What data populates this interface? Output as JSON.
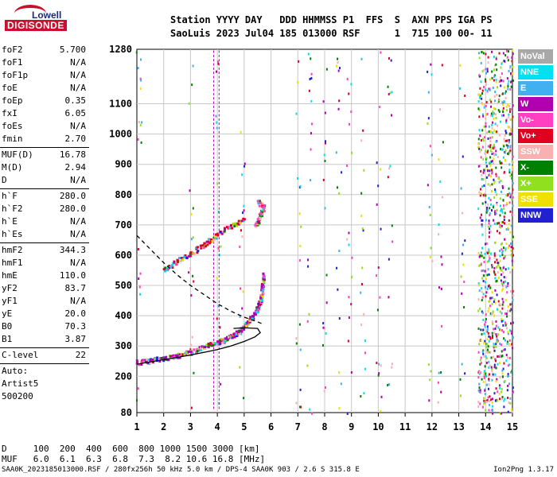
{
  "header": {
    "logo_top": "Lowell",
    "logo_bottom": "DIGISONDE",
    "row1": "Station YYYY DAY   DDD HHMMSS P1  FFS  S  AXN PPS IGA PS",
    "row2": "SaoLuis 2023 Jul04 185 013000 RSF      1  715 100 00- 11"
  },
  "params": {
    "group1": [
      {
        "label": "foF2",
        "value": "5.700"
      },
      {
        "label": "foF1",
        "value": "N/A"
      },
      {
        "label": "foF1p",
        "value": "N/A"
      },
      {
        "label": "foE",
        "value": "N/A"
      },
      {
        "label": "foEp",
        "value": "0.35"
      },
      {
        "label": "fxI",
        "value": "6.05"
      },
      {
        "label": "foEs",
        "value": "N/A"
      },
      {
        "label": "fmin",
        "value": "2.70"
      }
    ],
    "group2": [
      {
        "label": "MUF(D)",
        "value": "16.78"
      },
      {
        "label": "M(D)",
        "value": "2.94"
      },
      {
        "label": "D",
        "value": "N/A"
      }
    ],
    "group3": [
      {
        "label": "h`F",
        "value": "280.0"
      },
      {
        "label": "h`F2",
        "value": "280.0"
      },
      {
        "label": "h`E",
        "value": "N/A"
      },
      {
        "label": "h`Es",
        "value": "N/A"
      }
    ],
    "group4": [
      {
        "label": "hmF2",
        "value": "344.3"
      },
      {
        "label": "hmF1",
        "value": "N/A"
      },
      {
        "label": "hmE",
        "value": "110.0"
      },
      {
        "label": "yF2",
        "value": "83.7"
      },
      {
        "label": "yF1",
        "value": "N/A"
      },
      {
        "label": "yE",
        "value": "20.0"
      },
      {
        "label": "B0",
        "value": "70.3"
      },
      {
        "label": "B1",
        "value": "3.87"
      }
    ],
    "clevel": {
      "label": "C-level",
      "value": "22"
    },
    "auto_lines": [
      "Auto:",
      "Artist5",
      "500200"
    ]
  },
  "legend": [
    {
      "label": "NoVal",
      "color": "#a8a8a8"
    },
    {
      "label": "NNE",
      "color": "#00e0f0"
    },
    {
      "label": "E",
      "color": "#40b0f0"
    },
    {
      "label": "W",
      "color": "#b000b0"
    },
    {
      "label": "Vo-",
      "color": "#ff40c0"
    },
    {
      "label": "Vo+",
      "color": "#e00020"
    },
    {
      "label": "SSW",
      "color": "#f8b0b0"
    },
    {
      "label": "X-",
      "color": "#008000"
    },
    {
      "label": "X+",
      "color": "#90e020"
    },
    {
      "label": "SSE",
      "color": "#f0e000"
    },
    {
      "label": "NNW",
      "color": "#2020d0"
    }
  ],
  "dmuf": {
    "row1": "D     100  200  400  600  800 1000 1500 3000 [km]",
    "row2": "MUF   6.0  6.1  6.3  6.8  7.3  8.2 10.6 16.8 [MHz]"
  },
  "footer": "SAA0K_2023185013000.RSF / 280fx256h 50 kHz 5.0 km / DPS-4 SAA0K 903 / 2.6 S 315.8 E",
  "footer_right": "Ion2Png 1.3.17",
  "chart_data": {
    "type": "scatter",
    "xlabel": "",
    "ylabel": "",
    "xlim": [
      1,
      15
    ],
    "ylim": [
      80,
      1280
    ],
    "xticks": [
      1,
      2,
      3,
      4,
      5,
      6,
      7,
      8,
      9,
      10,
      11,
      12,
      13,
      14,
      15
    ],
    "yticks": [
      80,
      200,
      300,
      400,
      500,
      600,
      700,
      800,
      900,
      1000,
      1100,
      1280
    ],
    "grid": true,
    "series": [
      {
        "name": "O-trace F2",
        "color": "#b000b0",
        "points": [
          [
            1.0,
            248
          ],
          [
            1.5,
            255
          ],
          [
            2.0,
            262
          ],
          [
            2.5,
            270
          ],
          [
            3.0,
            282
          ],
          [
            3.5,
            298
          ],
          [
            4.0,
            316
          ],
          [
            4.3,
            326
          ],
          [
            4.6,
            340
          ],
          [
            4.9,
            360
          ],
          [
            5.1,
            378
          ],
          [
            5.3,
            400
          ],
          [
            5.5,
            430
          ],
          [
            5.6,
            460
          ],
          [
            5.65,
            500
          ],
          [
            5.7,
            540
          ]
        ]
      },
      {
        "name": "2F2 trace",
        "color": "#e00020",
        "points": [
          [
            2.0,
            555
          ],
          [
            2.5,
            585
          ],
          [
            3.0,
            610
          ],
          [
            3.5,
            640
          ],
          [
            4.0,
            670
          ],
          [
            4.5,
            700
          ],
          [
            5.0,
            720
          ]
        ]
      },
      {
        "name": "upper cluster",
        "color": "#ff40c0",
        "points": [
          [
            5.4,
            700
          ],
          [
            5.5,
            720
          ],
          [
            5.6,
            740
          ],
          [
            5.7,
            760
          ],
          [
            5.5,
            780
          ]
        ]
      },
      {
        "name": "N(h) profile",
        "color": "#000000",
        "points": [
          [
            1.0,
            240
          ],
          [
            2.0,
            255
          ],
          [
            3.0,
            270
          ],
          [
            4.0,
            288
          ],
          [
            4.5,
            300
          ],
          [
            5.0,
            315
          ],
          [
            5.4,
            330
          ],
          [
            5.6,
            344
          ],
          [
            5.5,
            358
          ],
          [
            5.0,
            360
          ],
          [
            4.6,
            358
          ]
        ]
      },
      {
        "name": "MUF curve",
        "color": "#000000",
        "points": [
          [
            1.0,
            665
          ],
          [
            1.5,
            620
          ],
          [
            2.0,
            575
          ],
          [
            2.5,
            535
          ],
          [
            3.0,
            500
          ],
          [
            3.5,
            470
          ],
          [
            4.0,
            440
          ],
          [
            4.5,
            415
          ],
          [
            5.0,
            395
          ],
          [
            5.5,
            380
          ],
          [
            5.7,
            372
          ]
        ]
      }
    ]
  }
}
